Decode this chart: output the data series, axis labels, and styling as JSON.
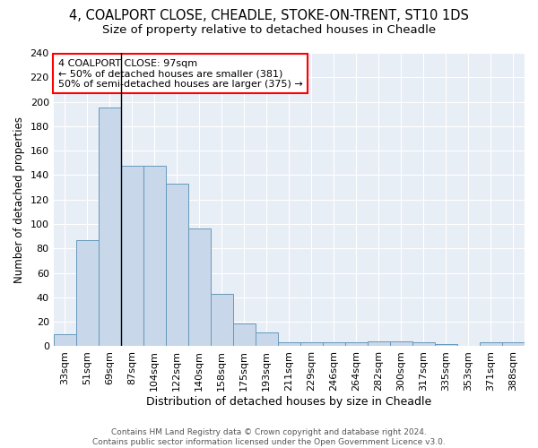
{
  "title1": "4, COALPORT CLOSE, CHEADLE, STOKE-ON-TRENT, ST10 1DS",
  "title2": "Size of property relative to detached houses in Cheadle",
  "xlabel": "Distribution of detached houses by size in Cheadle",
  "ylabel": "Number of detached properties",
  "categories": [
    "33sqm",
    "51sqm",
    "69sqm",
    "87sqm",
    "104sqm",
    "122sqm",
    "140sqm",
    "158sqm",
    "175sqm",
    "193sqm",
    "211sqm",
    "229sqm",
    "246sqm",
    "264sqm",
    "282sqm",
    "300sqm",
    "317sqm",
    "335sqm",
    "353sqm",
    "371sqm",
    "388sqm"
  ],
  "values": [
    10,
    87,
    195,
    148,
    148,
    133,
    96,
    43,
    19,
    11,
    3,
    3,
    3,
    3,
    4,
    4,
    3,
    2,
    0,
    3,
    3
  ],
  "bar_color": "#c8d8ea",
  "bar_edge_color": "#6699bb",
  "background_color": "#e8eef6",
  "grid_color": "#ffffff",
  "annotation_text": "4 COALPORT CLOSE: 97sqm\n← 50% of detached houses are smaller (381)\n50% of semi-detached houses are larger (375) →",
  "vline_x_idx": 2.5,
  "ylim": [
    0,
    240
  ],
  "yticks": [
    0,
    20,
    40,
    60,
    80,
    100,
    120,
    140,
    160,
    180,
    200,
    220,
    240
  ],
  "footer_text": "Contains HM Land Registry data © Crown copyright and database right 2024.\nContains public sector information licensed under the Open Government Licence v3.0.",
  "title_fontsize": 10.5,
  "subtitle_fontsize": 9.5,
  "ylabel_fontsize": 8.5,
  "xlabel_fontsize": 9,
  "tick_fontsize": 8,
  "footer_fontsize": 6.5
}
